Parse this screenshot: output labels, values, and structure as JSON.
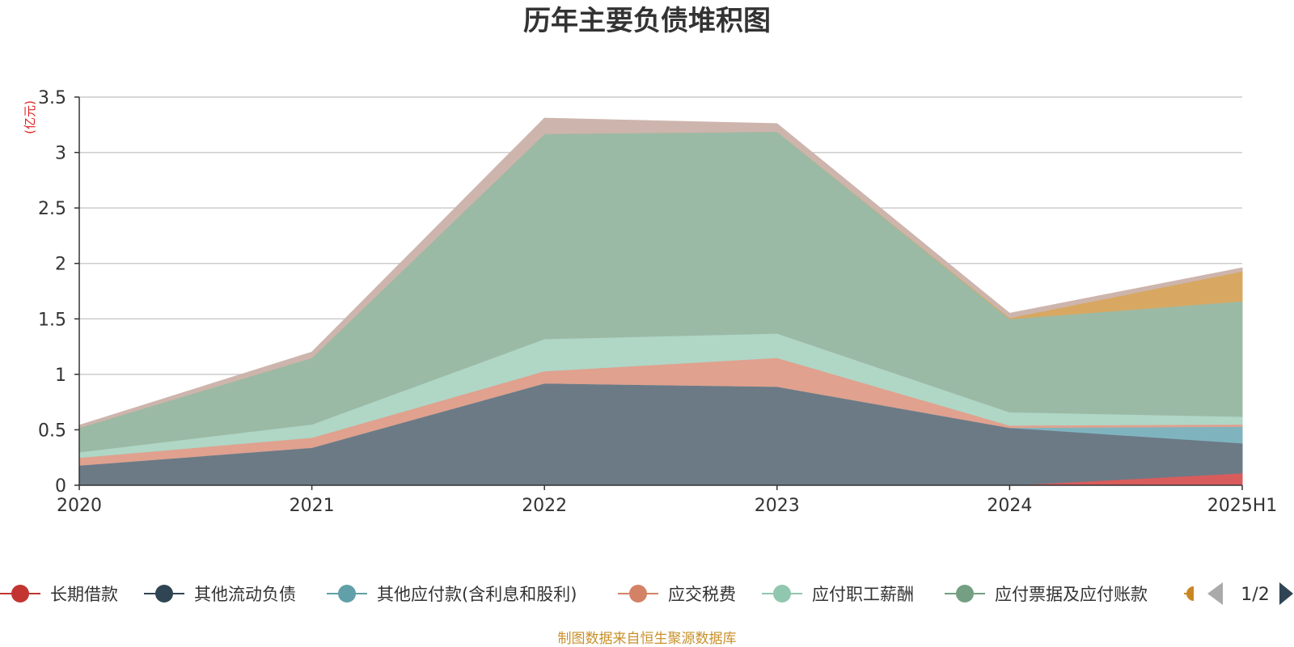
{
  "chart_data": {
    "type": "area",
    "stacked": true,
    "title": "历年主要负债堆积图",
    "unit_label": "(亿元)",
    "x": [
      "2020",
      "2021",
      "2022",
      "2023",
      "2024",
      "2025H1"
    ],
    "ylim": [
      0,
      3.5
    ],
    "yticks": [
      "0",
      "0.5",
      "1",
      "1.5",
      "2",
      "2.5",
      "3",
      "3.5"
    ],
    "grid": true,
    "legend_position": "bottom",
    "series": [
      {
        "name": "长期借款",
        "values": [
          0,
          0,
          0,
          0,
          0,
          0.11
        ],
        "color": "#d95c5c"
      },
      {
        "name": "其他流动负债",
        "values": [
          0.18,
          0.34,
          0.92,
          0.89,
          0.52,
          0.27
        ],
        "color": "#6c7a86"
      },
      {
        "name": "其他应付款(含利息和股利)",
        "values": [
          0,
          0,
          0,
          0,
          0,
          0.15
        ],
        "color": "#7fb4bf"
      },
      {
        "name": "应交税费",
        "values": [
          0.07,
          0.09,
          0.11,
          0.26,
          0.02,
          0.02
        ],
        "color": "#e0a18e"
      },
      {
        "name": "应付职工薪酬",
        "values": [
          0.05,
          0.12,
          0.29,
          0.22,
          0.12,
          0.07
        ],
        "color": "#b0d6c6"
      },
      {
        "name": "应付票据及应付账款",
        "values": [
          0.22,
          0.6,
          1.85,
          1.82,
          0.84,
          1.04
        ],
        "color": "#9bbaa6"
      },
      {
        "name": "",
        "values": [
          0,
          0,
          0,
          0,
          0.01,
          0.27
        ],
        "color": "#d8a862"
      },
      {
        "name": "",
        "values": [
          0.02,
          0.05,
          0.14,
          0.07,
          0.04,
          0.03
        ],
        "color": "#cdb5ad"
      }
    ],
    "legend_line_colors": [
      "#c23531",
      "#2f4554",
      "#61a0a8",
      "#d48265",
      "#91c7ae",
      "#749f83",
      "#ca8622"
    ],
    "legend_page": "1/2",
    "source": "制图数据来自恒生聚源数据库"
  }
}
